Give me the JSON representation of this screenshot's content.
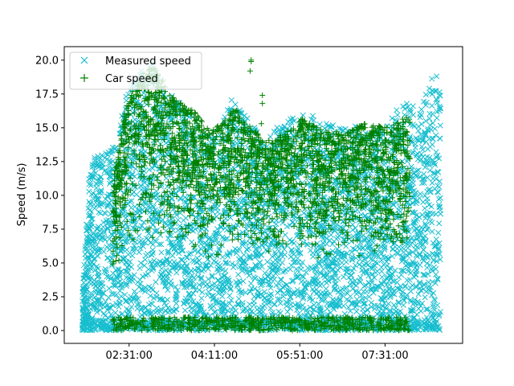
{
  "chart_data": {
    "type": "scatter",
    "title": "",
    "xlabel": "",
    "ylabel": "Speed (m/s)",
    "x_tick_labels": [
      "02:31:00",
      "04:11:00",
      "05:51:00",
      "07:31:00"
    ],
    "x_ticks_hours": [
      2.5167,
      4.1833,
      5.85,
      7.5167
    ],
    "xlim_hours": [
      1.25,
      9.03
    ],
    "ylim": [
      -0.95,
      21.0
    ],
    "y_ticks": [
      0.0,
      2.5,
      5.0,
      7.5,
      10.0,
      12.5,
      15.0,
      17.5,
      20.0
    ],
    "y_tick_labels": [
      "0.0",
      "2.5",
      "5.0",
      "7.5",
      "10.0",
      "12.5",
      "15.0",
      "17.5",
      "20.0"
    ],
    "legend_position": "upper-left",
    "series": [
      {
        "name": "Measured speed",
        "marker": "x",
        "color": "#17becf",
        "x_range_hours": [
          1.6,
          8.6
        ],
        "y_range": [
          0.0,
          19.3
        ],
        "envelope": [
          {
            "x": 1.6,
            "y_max": 2.5
          },
          {
            "x": 1.75,
            "y_max": 12.5
          },
          {
            "x": 2.0,
            "y_max": 13.3
          },
          {
            "x": 2.3,
            "y_max": 14.0
          },
          {
            "x": 2.4,
            "y_max": 17.0
          },
          {
            "x": 2.75,
            "y_max": 19.5
          },
          {
            "x": 3.0,
            "y_max": 19.8
          },
          {
            "x": 3.2,
            "y_max": 18.0
          },
          {
            "x": 3.5,
            "y_max": 16.9
          },
          {
            "x": 3.8,
            "y_max": 16.0
          },
          {
            "x": 4.0,
            "y_max": 14.5
          },
          {
            "x": 4.3,
            "y_max": 15.0
          },
          {
            "x": 4.55,
            "y_max": 17.8
          },
          {
            "x": 4.9,
            "y_max": 15.3
          },
          {
            "x": 5.2,
            "y_max": 14.0
          },
          {
            "x": 5.5,
            "y_max": 15.5
          },
          {
            "x": 5.9,
            "y_max": 16.5
          },
          {
            "x": 6.3,
            "y_max": 15.3
          },
          {
            "x": 6.8,
            "y_max": 15.3
          },
          {
            "x": 7.2,
            "y_max": 15.0
          },
          {
            "x": 7.5,
            "y_max": 14.8
          },
          {
            "x": 7.85,
            "y_max": 17.0
          },
          {
            "x": 8.2,
            "y_max": 16.5
          },
          {
            "x": 8.5,
            "y_max": 19.3
          },
          {
            "x": 8.6,
            "y_max": 18.5
          }
        ]
      },
      {
        "name": "Car speed",
        "marker": "+",
        "color": "#008000",
        "x_range_hours": [
          2.2,
          8.0
        ],
        "y_range": [
          0.0,
          20.0
        ],
        "envelope": [
          {
            "x": 2.2,
            "y_max": 11.0
          },
          {
            "x": 2.45,
            "y_max": 16.5
          },
          {
            "x": 2.7,
            "y_max": 19.0
          },
          {
            "x": 3.0,
            "y_max": 19.5
          },
          {
            "x": 3.3,
            "y_max": 17.8
          },
          {
            "x": 3.5,
            "y_max": 17.0
          },
          {
            "x": 3.8,
            "y_max": 16.2
          },
          {
            "x": 4.1,
            "y_max": 14.8
          },
          {
            "x": 4.3,
            "y_max": 15.3
          },
          {
            "x": 4.6,
            "y_max": 16.5
          },
          {
            "x": 4.9,
            "y_max": 15.0
          },
          {
            "x": 5.2,
            "y_max": 14.0
          },
          {
            "x": 5.5,
            "y_max": 14.5
          },
          {
            "x": 5.9,
            "y_max": 15.7
          },
          {
            "x": 6.3,
            "y_max": 14.8
          },
          {
            "x": 6.8,
            "y_max": 14.7
          },
          {
            "x": 7.2,
            "y_max": 15.5
          },
          {
            "x": 7.6,
            "y_max": 15.0
          },
          {
            "x": 8.0,
            "y_max": 16.0
          }
        ],
        "outliers": [
          {
            "x": 4.9,
            "y": 20.0
          },
          {
            "x": 4.9,
            "y": 19.9
          },
          {
            "x": 4.88,
            "y": 19.2
          },
          {
            "x": 5.12,
            "y": 17.4
          },
          {
            "x": 5.12,
            "y": 16.8
          },
          {
            "x": 5.1,
            "y": 15.3
          }
        ]
      }
    ]
  }
}
